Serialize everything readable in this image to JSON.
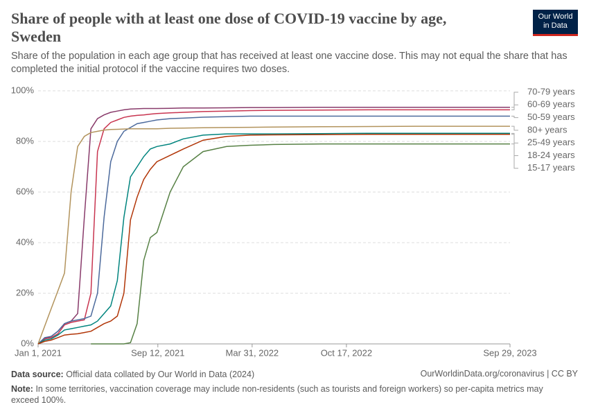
{
  "chart_data": {
    "type": "line",
    "title": "Share of people with at least one dose of COVID-19 vaccine by age, Sweden",
    "subtitle": "Share of the population in each age group that has received at least one vaccine dose. This may not equal the share that has completed the initial protocol if the vaccine requires two doses.",
    "logo": [
      "Our World",
      "in Data"
    ],
    "source_label": "Data source:",
    "source": "Official data collated by Our World in Data (2024)",
    "url": "OurWorldinData.org/coronavirus | CC BY",
    "note_label": "Note:",
    "note": "In some territories, vaccination coverage may include non-residents (such as tourists and foreign workers) so per-capita metrics may exceed 100%.",
    "x": [
      "2021-01-01",
      "2021-01-15",
      "2021-01-29",
      "2021-02-12",
      "2021-02-26",
      "2021-03-12",
      "2021-03-26",
      "2021-04-09",
      "2021-04-23",
      "2021-05-07",
      "2021-05-21",
      "2021-06-04",
      "2021-06-18",
      "2021-07-02",
      "2021-07-16",
      "2021-07-30",
      "2021-08-13",
      "2021-08-27",
      "2021-09-10",
      "2021-10-08",
      "2021-11-05",
      "2021-12-17",
      "2022-02-05",
      "2022-03-27",
      "2022-05-16",
      "2022-08-24",
      "2022-12-02",
      "2023-03-12",
      "2023-06-20",
      "2023-09-29"
    ],
    "xlim": [
      "2021-01-01",
      "2023-09-29"
    ],
    "xticks": [
      {
        "value": "2021-01-01",
        "label": "Jan 1, 2021"
      },
      {
        "value": "2021-09-12",
        "label": "Sep 12, 2021"
      },
      {
        "value": "2022-03-31",
        "label": "Mar 31, 2022"
      },
      {
        "value": "2022-10-17",
        "label": "Oct 17, 2022"
      },
      {
        "value": "2023-09-29",
        "label": "Sep 29, 2023"
      }
    ],
    "ylim": [
      0,
      100
    ],
    "yticks": [
      {
        "value": 0,
        "label": "0%"
      },
      {
        "value": 20,
        "label": "20%"
      },
      {
        "value": 40,
        "label": "40%"
      },
      {
        "value": 60,
        "label": "60%"
      },
      {
        "value": 80,
        "label": "80%"
      },
      {
        "value": 100,
        "label": "100%"
      }
    ],
    "grid": true,
    "series": [
      {
        "name": "70-79 years",
        "color": "#883a6a",
        "values": [
          0,
          2,
          3,
          5,
          8,
          9,
          12,
          50,
          85,
          89,
          90.5,
          91.5,
          92,
          92.5,
          92.8,
          92.9,
          93,
          93,
          93,
          93.1,
          93.2,
          93.2,
          93.3,
          93.4,
          93.4,
          93.5,
          93.5,
          93.5,
          93.5,
          93.5
        ]
      },
      {
        "name": "60-69 years",
        "color": "#c8344f",
        "values": [
          0,
          2,
          2.5,
          4,
          7.5,
          8.5,
          9,
          9.5,
          20,
          76,
          85,
          87.5,
          88.5,
          89.5,
          90,
          90.3,
          90.5,
          90.8,
          91,
          91.3,
          91.5,
          91.8,
          92,
          92.2,
          92.3,
          92.4,
          92.5,
          92.5,
          92.5,
          92.5
        ]
      },
      {
        "name": "50-59 years",
        "color": "#4c6a9c",
        "values": [
          0,
          2.5,
          3,
          5,
          8,
          9,
          9.5,
          10,
          11,
          20,
          50,
          72,
          80,
          84,
          85.5,
          87,
          87.5,
          88,
          88.5,
          89,
          89.2,
          89.6,
          89.8,
          90,
          90,
          90,
          90,
          90,
          90,
          90
        ]
      },
      {
        "name": "80+ years",
        "color": "#b2935c",
        "values": [
          0,
          7,
          14,
          21,
          28,
          60,
          78,
          82,
          83.5,
          84,
          84.5,
          84.7,
          84.8,
          84.9,
          85,
          85,
          85,
          85,
          85,
          85.2,
          85.3,
          85.4,
          85.5,
          85.6,
          85.7,
          85.8,
          85.9,
          86,
          86,
          86
        ]
      },
      {
        "name": "25-49 years",
        "color": "#00847e",
        "values": [
          0,
          1.5,
          2,
          3.5,
          5.5,
          6,
          6.5,
          7,
          7.5,
          9,
          12,
          15,
          25,
          50,
          66,
          70,
          74,
          77,
          78,
          79,
          81,
          82.5,
          83,
          83,
          83,
          83.1,
          83.2,
          83.2,
          83.2,
          83.2
        ]
      },
      {
        "name": "18-24 years",
        "color": "#b13507",
        "values": [
          0,
          1,
          1.5,
          2.5,
          3.5,
          3.8,
          4,
          4.5,
          5,
          6.5,
          8,
          9,
          11,
          20,
          49,
          58,
          65,
          69,
          72,
          74.5,
          77,
          80.5,
          82,
          82.5,
          82.6,
          82.7,
          82.8,
          82.8,
          82.8,
          82.8
        ]
      },
      {
        "name": "15-17 years",
        "color": "#578145",
        "values": [
          null,
          null,
          null,
          null,
          null,
          null,
          null,
          null,
          0,
          0,
          0,
          0,
          0,
          0,
          0.5,
          8,
          33,
          42,
          44,
          60,
          70,
          76,
          78,
          78.5,
          78.8,
          79,
          79,
          79,
          79,
          79
        ]
      }
    ]
  }
}
